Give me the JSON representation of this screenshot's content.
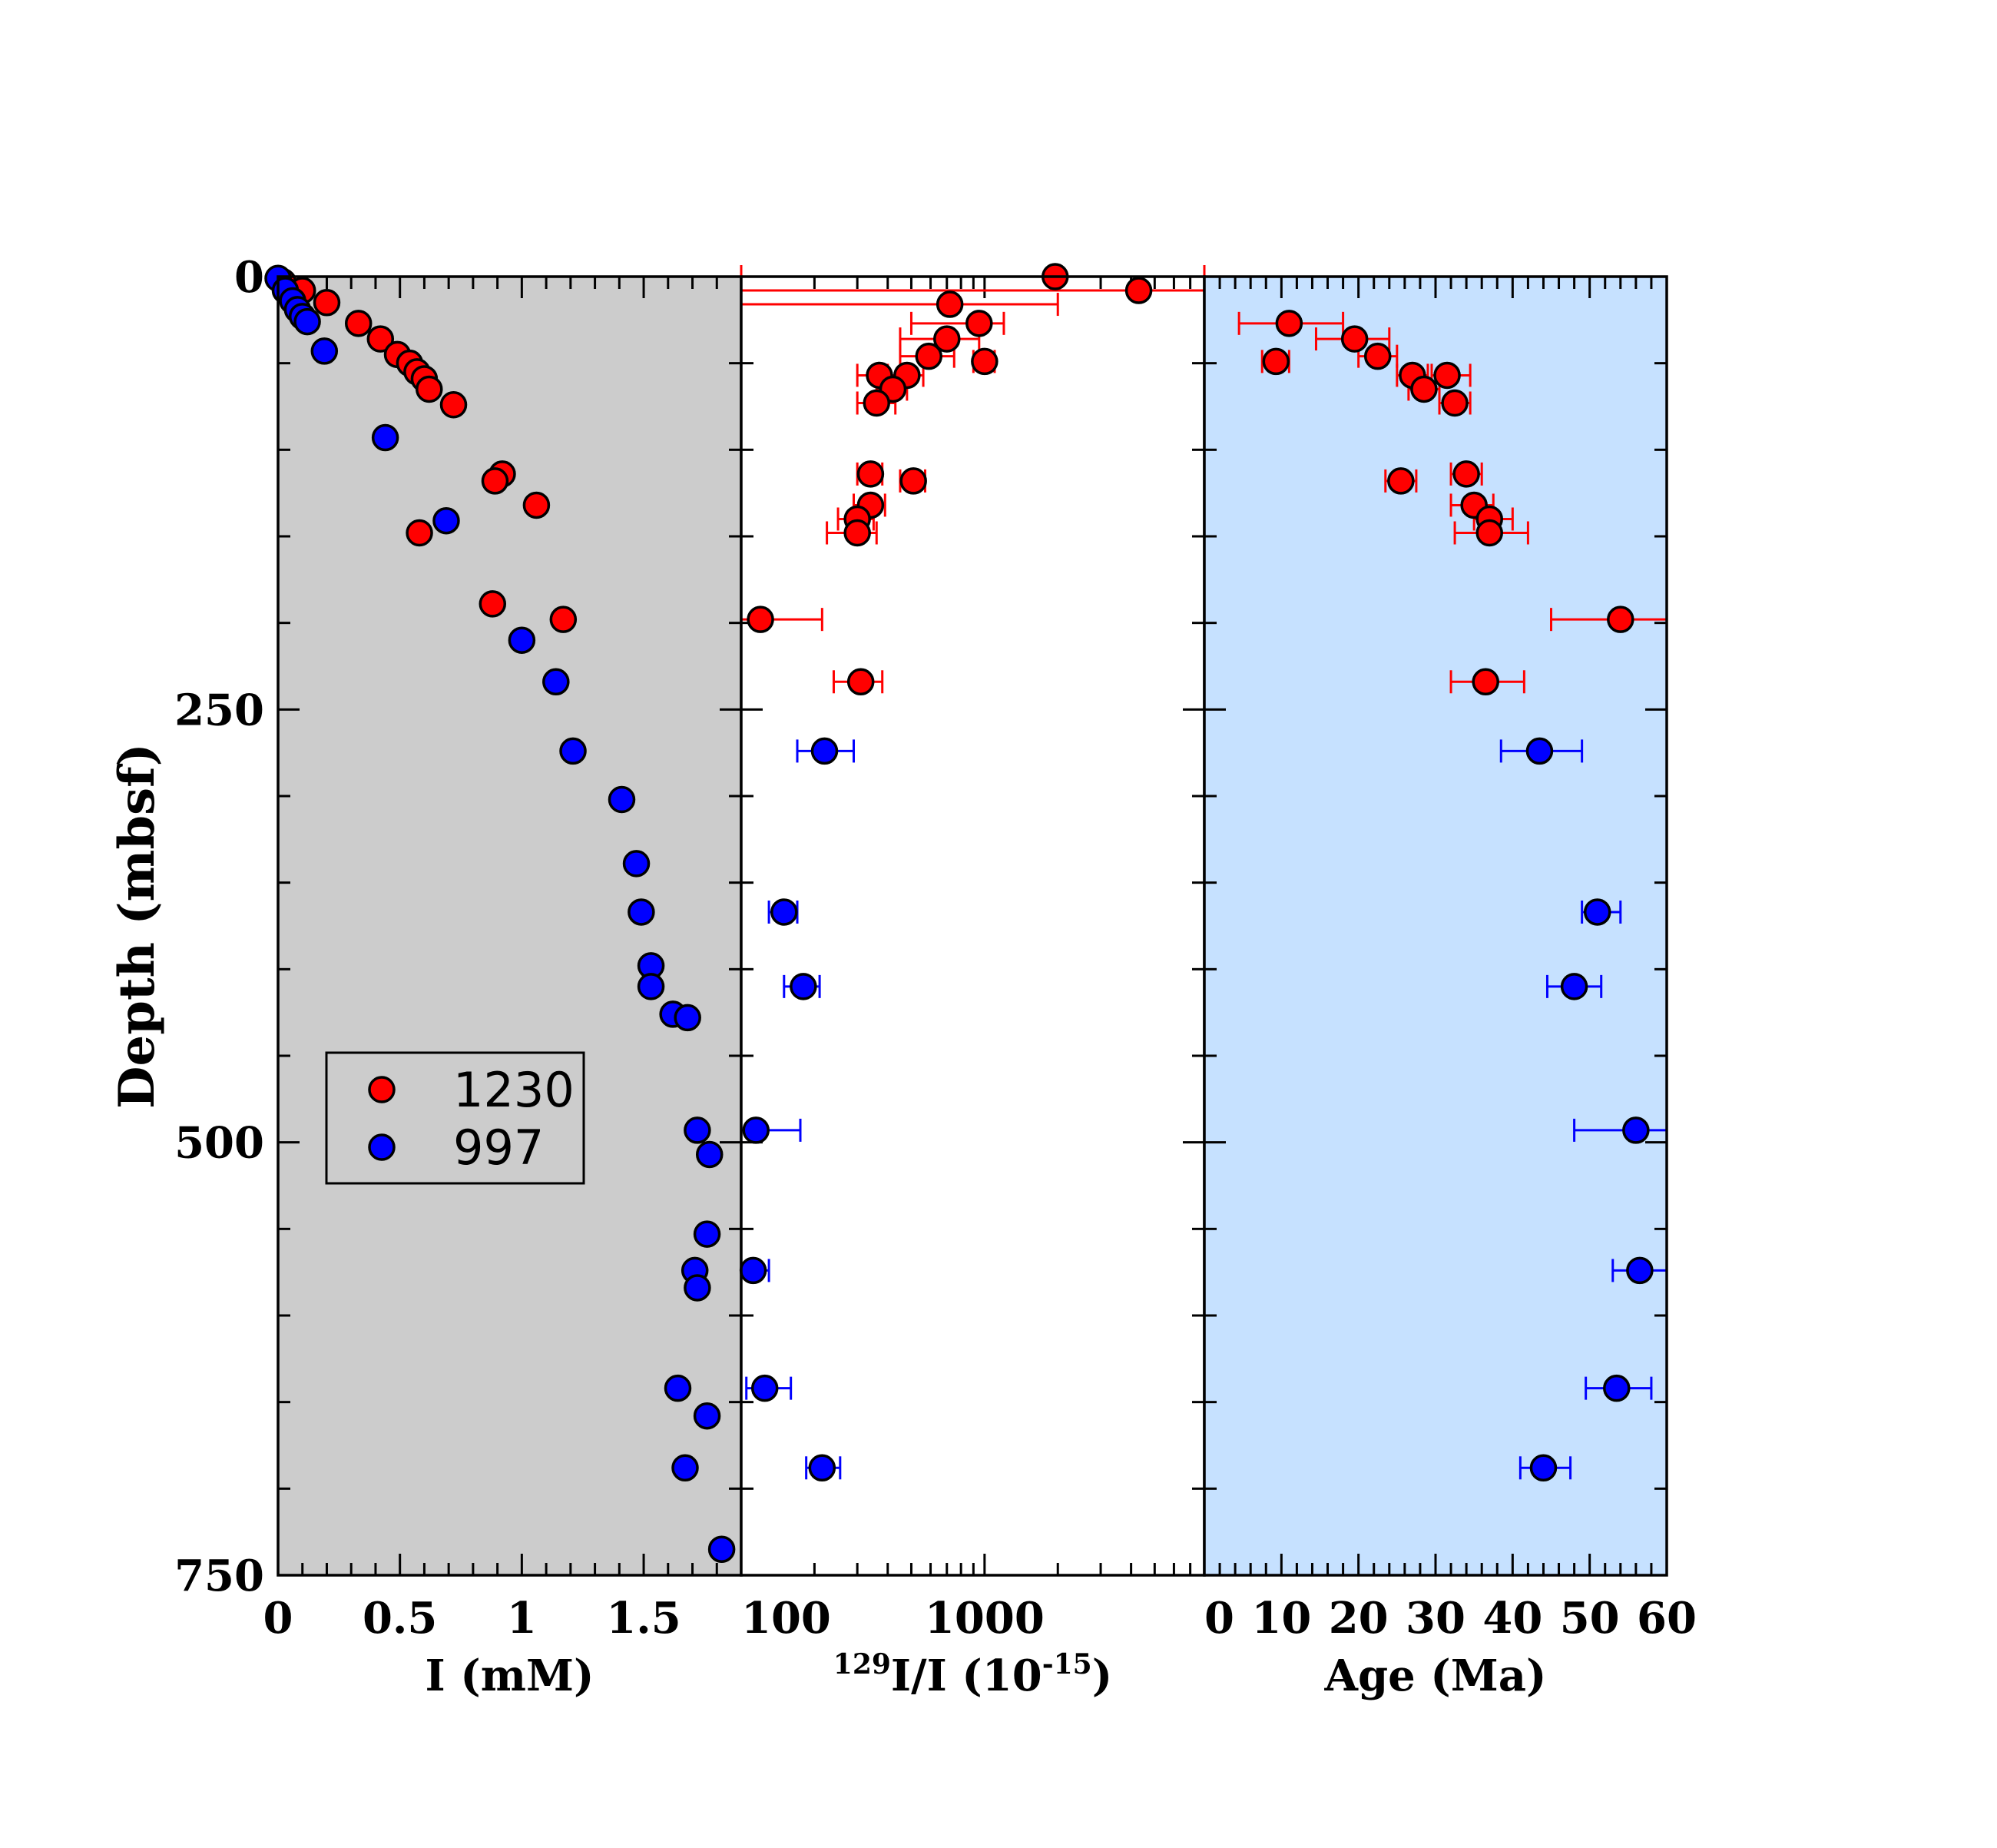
{
  "chart_data": {
    "type": "scatter",
    "shared_y": {
      "label": "Depth (mbsf)",
      "ylim": [
        0,
        750
      ],
      "ticks": [
        0,
        250,
        500,
        750
      ],
      "tick_labels": [
        "0",
        "250",
        "500",
        "750"
      ],
      "inverted": true
    },
    "legend": {
      "placement": "left panel, lower-left",
      "entries": [
        {
          "name": "1230",
          "color": "#ff0000"
        },
        {
          "name": "997",
          "color": "#0000ff"
        }
      ]
    },
    "panels": [
      {
        "id": "iodine",
        "xlabel": "I (mM)",
        "xlim": [
          0,
          1.9
        ],
        "x_scale": "linear",
        "xticks": [
          0,
          0.5,
          1,
          1.5
        ],
        "xtick_labels": [
          "0",
          "0.5",
          "1",
          "1.5"
        ],
        "background": "#cccccc",
        "series": [
          {
            "name": "1230",
            "color": "#ff0000",
            "points": [
              {
                "x": 0.02,
                "y": 3
              },
              {
                "x": 0.1,
                "y": 8
              },
              {
                "x": 0.2,
                "y": 15
              },
              {
                "x": 0.33,
                "y": 27
              },
              {
                "x": 0.42,
                "y": 36
              },
              {
                "x": 0.49,
                "y": 45
              },
              {
                "x": 0.54,
                "y": 50
              },
              {
                "x": 0.57,
                "y": 55
              },
              {
                "x": 0.6,
                "y": 59
              },
              {
                "x": 0.62,
                "y": 65
              },
              {
                "x": 0.72,
                "y": 74
              },
              {
                "x": 0.92,
                "y": 114
              },
              {
                "x": 0.89,
                "y": 118
              },
              {
                "x": 1.06,
                "y": 132
              },
              {
                "x": 0.58,
                "y": 148
              },
              {
                "x": 0.88,
                "y": 189
              },
              {
                "x": 1.17,
                "y": 198
              }
            ]
          },
          {
            "name": "997",
            "color": "#0000ff",
            "points": [
              {
                "x": 0.0,
                "y": 1
              },
              {
                "x": 0.03,
                "y": 8
              },
              {
                "x": 0.06,
                "y": 14
              },
              {
                "x": 0.08,
                "y": 19
              },
              {
                "x": 0.1,
                "y": 23
              },
              {
                "x": 0.12,
                "y": 26
              },
              {
                "x": 0.19,
                "y": 43
              },
              {
                "x": 0.44,
                "y": 93
              },
              {
                "x": 0.69,
                "y": 141
              },
              {
                "x": 1.0,
                "y": 210
              },
              {
                "x": 1.14,
                "y": 234
              },
              {
                "x": 1.21,
                "y": 274
              },
              {
                "x": 1.41,
                "y": 302
              },
              {
                "x": 1.47,
                "y": 339
              },
              {
                "x": 1.49,
                "y": 367
              },
              {
                "x": 1.53,
                "y": 398
              },
              {
                "x": 1.53,
                "y": 410
              },
              {
                "x": 1.62,
                "y": 426
              },
              {
                "x": 1.68,
                "y": 428
              },
              {
                "x": 1.72,
                "y": 493
              },
              {
                "x": 1.77,
                "y": 507
              },
              {
                "x": 1.76,
                "y": 553
              },
              {
                "x": 1.71,
                "y": 574
              },
              {
                "x": 1.72,
                "y": 584
              },
              {
                "x": 1.64,
                "y": 642
              },
              {
                "x": 1.76,
                "y": 658
              },
              {
                "x": 1.67,
                "y": 688
              },
              {
                "x": 1.82,
                "y": 735
              }
            ]
          }
        ]
      },
      {
        "id": "ratio",
        "xlabel_sup": "129",
        "xlabel_main": "I/I (10",
        "xlabel_exp": "-15",
        "xlabel_tail": ")",
        "xlim": [
          100,
          8000
        ],
        "x_scale": "log",
        "xticks": [
          100,
          1000
        ],
        "xtick_labels": [
          "100",
          "1000"
        ],
        "background": "#ffffff",
        "series": [
          {
            "name": "1230",
            "color": "#ff0000",
            "points": [
              {
                "x": 1950,
                "y": 0,
                "xerr": [
                  100,
                  8000
                ]
              },
              {
                "x": 4300,
                "y": 8,
                "xerr": [
                  100,
                  8000
                ]
              },
              {
                "x": 720,
                "y": 16,
                "xerr": [
                  100,
                  2000
                ]
              },
              {
                "x": 950,
                "y": 27,
                "xerr": [
                  500,
                  1200
                ]
              },
              {
                "x": 700,
                "y": 36,
                "xerr": [
                  450,
                  950
                ]
              },
              {
                "x": 1000,
                "y": 49,
                "xerr": [
                  900,
                  1100
                ]
              },
              {
                "x": 590,
                "y": 46,
                "xerr": [
                  450,
                  750
                ]
              },
              {
                "x": 480,
                "y": 57,
                "xerr": [
                  400,
                  560
                ]
              },
              {
                "x": 370,
                "y": 57,
                "xerr": [
                  300,
                  480
                ]
              },
              {
                "x": 420,
                "y": 65,
                "xerr": [
                  360,
                  480
                ]
              },
              {
                "x": 360,
                "y": 73,
                "xerr": [
                  300,
                  430
                ]
              },
              {
                "x": 340,
                "y": 114,
                "xerr": [
                  300,
                  380
                ]
              },
              {
                "x": 510,
                "y": 118,
                "xerr": [
                  450,
                  570
                ]
              },
              {
                "x": 340,
                "y": 132,
                "xerr": [
                  290,
                  390
                ]
              },
              {
                "x": 300,
                "y": 140,
                "xerr": [
                  250,
                  350
                ]
              },
              {
                "x": 300,
                "y": 148,
                "xerr": [
                  225,
                  360
                ]
              },
              {
                "x": 120,
                "y": 198,
                "xerr": [
                  100,
                  215
                ]
              },
              {
                "x": 310,
                "y": 234,
                "xerr": [
                  240,
                  380
                ]
              }
            ]
          },
          {
            "name": "997",
            "color": "#0000ff",
            "points": [
              {
                "x": 220,
                "y": 274,
                "xerr": [
                  170,
                  290
                ]
              },
              {
                "x": 150,
                "y": 367,
                "xerr": [
                  130,
                  170
                ]
              },
              {
                "x": 180,
                "y": 410,
                "xerr": [
                  150,
                  210
                ]
              },
              {
                "x": 115,
                "y": 493,
                "xerr": [
                  100,
                  175
                ]
              },
              {
                "x": 112,
                "y": 574,
                "xerr": [
                  100,
                  130
                ]
              },
              {
                "x": 125,
                "y": 642,
                "xerr": [
                  105,
                  160
                ]
              },
              {
                "x": 215,
                "y": 688,
                "xerr": [
                  185,
                  255
                ]
              }
            ]
          }
        ]
      },
      {
        "id": "age",
        "xlabel": "Age (Ma)",
        "xlim": [
          0,
          60
        ],
        "x_scale": "linear",
        "xticks": [
          0,
          10,
          20,
          30,
          40,
          50,
          60
        ],
        "xtick_labels": [
          "0",
          "10",
          "20",
          "30",
          "40",
          "50",
          "60"
        ],
        "background": "#c6e1ff",
        "series": [
          {
            "name": "1230",
            "color": "#ff0000",
            "points": [
              {
                "x": 11,
                "y": 27,
                "xerr": [
                  4.5,
                  18
                ]
              },
              {
                "x": 19.5,
                "y": 36,
                "xerr": [
                  14.5,
                  24
                ]
              },
              {
                "x": 9.3,
                "y": 49,
                "xerr": [
                  7.5,
                  11
                ]
              },
              {
                "x": 22.5,
                "y": 46,
                "xerr": [
                  20,
                  25
                ]
              },
              {
                "x": 27,
                "y": 57,
                "xerr": [
                  25,
                  29
                ]
              },
              {
                "x": 31.5,
                "y": 57,
                "xerr": [
                  29.5,
                  34.5
                ]
              },
              {
                "x": 28.5,
                "y": 65,
                "xerr": [
                  26.5,
                  30.5
                ]
              },
              {
                "x": 32.5,
                "y": 73,
                "xerr": [
                  30.5,
                  34.5
                ]
              },
              {
                "x": 34,
                "y": 114,
                "xerr": [
                  32,
                  36
                ]
              },
              {
                "x": 25.5,
                "y": 118,
                "xerr": [
                  23.5,
                  27.5
                ]
              },
              {
                "x": 35,
                "y": 132,
                "xerr": [
                  32,
                  37.5
                ]
              },
              {
                "x": 37,
                "y": 140,
                "xerr": [
                  35,
                  40
                ]
              },
              {
                "x": 37,
                "y": 148,
                "xerr": [
                  32.5,
                  42
                ]
              },
              {
                "x": 54,
                "y": 198,
                "xerr": [
                  45,
                  60
                ]
              },
              {
                "x": 36.5,
                "y": 234,
                "xerr": [
                  32,
                  41.5
                ]
              }
            ]
          },
          {
            "name": "997",
            "color": "#0000ff",
            "points": [
              {
                "x": 43.5,
                "y": 274,
                "xerr": [
                  38.5,
                  49
                ]
              },
              {
                "x": 51,
                "y": 367,
                "xerr": [
                  49,
                  54
                ]
              },
              {
                "x": 48,
                "y": 410,
                "xerr": [
                  44.5,
                  51.5
                ]
              },
              {
                "x": 56,
                "y": 493,
                "xerr": [
                  48,
                  60
                ]
              },
              {
                "x": 56.5,
                "y": 574,
                "xerr": [
                  53,
                  60
                ]
              },
              {
                "x": 53.5,
                "y": 642,
                "xerr": [
                  49.5,
                  58
                ]
              },
              {
                "x": 44,
                "y": 688,
                "xerr": [
                  41,
                  47.5
                ]
              }
            ]
          }
        ]
      }
    ]
  }
}
